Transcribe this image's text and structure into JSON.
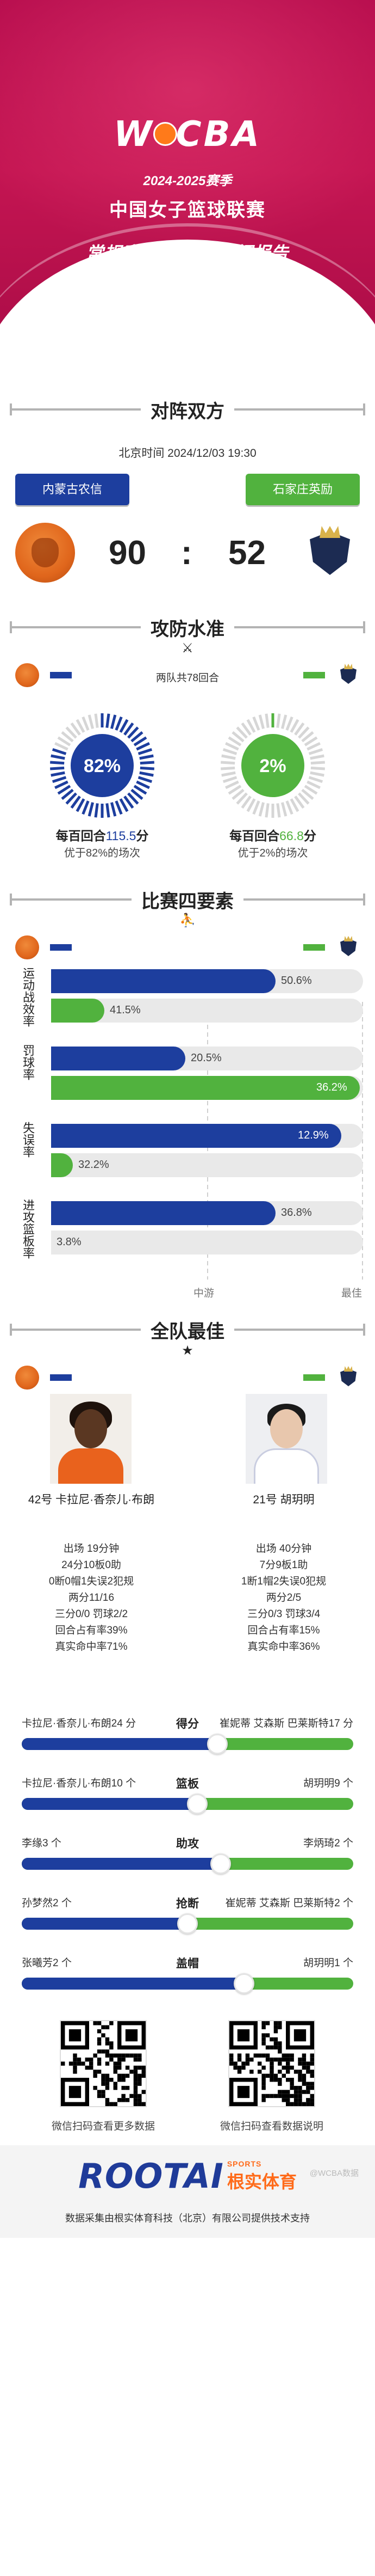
{
  "header": {
    "logo_text": "WCBA",
    "season": "2024-2025赛季",
    "league": "中国女子篮球联赛",
    "report_title": "常规赛A组第1轮数据报告"
  },
  "colors": {
    "home": "#1d3e9e",
    "away": "#51b23e",
    "brand": "#c41552"
  },
  "matchup": {
    "title": "对阵双方",
    "time": "北京时间 2024/12/03 19:30",
    "home_team": "内蒙古农信",
    "away_team": "石家庄英励",
    "home_score": "90",
    "separator": ":",
    "away_score": "52"
  },
  "offense_defense": {
    "title": "攻防水准",
    "possessions": "两队共78回合",
    "home_percentile": 0.82,
    "away_percentile": 0.02,
    "home_ring_label": "82%",
    "away_ring_label": "2%",
    "home_stat_prefix": "每百回合",
    "home_stat_value": "115.5",
    "home_stat_suffix": "分",
    "away_stat_prefix": "每百回合",
    "away_stat_value": "66.8",
    "away_stat_suffix": "分",
    "home_sub": "优于82%的场次",
    "away_sub": "优于2%的场次"
  },
  "four_factors": {
    "title": "比赛四要素",
    "axis_left": "中游",
    "axis_right": "最佳",
    "factors": [
      {
        "label": "运动战效率",
        "home": "50.6%",
        "away": "41.5%",
        "home_fill": 0.72,
        "away_fill": 0.17
      },
      {
        "label": "罚球率",
        "home": "20.5%",
        "away": "36.2%",
        "home_fill": 0.43,
        "away_fill": 0.99
      },
      {
        "label": "失误率",
        "home": "12.9%",
        "away": "32.2%",
        "home_fill": 0.93,
        "away_fill": 0.07
      },
      {
        "label": "进攻篮板率",
        "home": "36.8%",
        "away": "3.8%",
        "home_fill": 0.72,
        "away_fill": 0.0
      }
    ]
  },
  "best_players": {
    "title": "全队最佳",
    "home": {
      "name": "42号 卡拉尼·香奈儿·布朗",
      "stats": [
        "出场 19分钟",
        "24分10板0助",
        "0断0帽1失误2犯规",
        "两分11/16",
        "三分0/0 罚球2/2",
        "回合占有率39%",
        "真实命中率71%"
      ]
    },
    "away": {
      "name": "21号 胡玥明",
      "stats": [
        "出场 40分钟",
        "7分9板1助",
        "1断1帽2失误0犯规",
        "两分2/5",
        "三分0/3 罚球3/4",
        "回合占有率15%",
        "真实命中率36%"
      ]
    }
  },
  "leaders": [
    {
      "category": "得分",
      "home": "卡拉尼·香奈儿·布朗24 分",
      "away": "崔妮蒂 艾森斯 巴莱斯特17 分",
      "home_share": 0.59
    },
    {
      "category": "篮板",
      "home": "卡拉尼·香奈儿·布朗10 个",
      "away": "胡玥明9 个",
      "home_share": 0.53
    },
    {
      "category": "助攻",
      "home": "李缘3 个",
      "away": "李炳琦2 个",
      "home_share": 0.6
    },
    {
      "category": "抢断",
      "home": "孙梦然2 个",
      "away": "崔妮蒂 艾森斯 巴莱斯特2 个",
      "home_share": 0.5
    },
    {
      "category": "盖帽",
      "home": "张曦芳2 个",
      "away": "胡玥明1 个",
      "home_share": 0.67
    }
  ],
  "footer": {
    "qr_left_caption": "微信扫码查看更多数据",
    "qr_right_caption": "微信扫码查看数据说明",
    "brand_name": "ROOTAI",
    "brand_sports_en": "SPORTS",
    "brand_sports_zh": "根实体育",
    "note": "数据采集由根实体育科技（北京）有限公司提供技术支持",
    "watermark": "@WCBA数据"
  }
}
